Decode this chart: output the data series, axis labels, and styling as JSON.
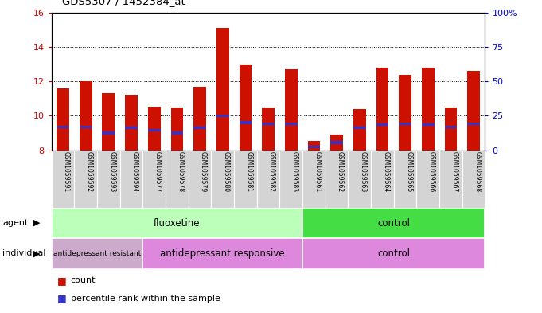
{
  "title": "GDS5307 / 1452384_at",
  "samples": [
    "GSM1059591",
    "GSM1059592",
    "GSM1059593",
    "GSM1059594",
    "GSM1059577",
    "GSM1059578",
    "GSM1059579",
    "GSM1059580",
    "GSM1059581",
    "GSM1059582",
    "GSM1059583",
    "GSM1059561",
    "GSM1059562",
    "GSM1059563",
    "GSM1059564",
    "GSM1059565",
    "GSM1059566",
    "GSM1059567",
    "GSM1059568"
  ],
  "bar_tops": [
    11.6,
    12.0,
    11.3,
    11.2,
    10.55,
    10.5,
    11.7,
    15.1,
    13.0,
    10.5,
    12.7,
    8.55,
    8.9,
    10.4,
    12.8,
    12.4,
    12.8,
    10.5,
    12.6
  ],
  "blue_marks": [
    9.35,
    9.35,
    9.0,
    9.3,
    9.15,
    9.0,
    9.3,
    10.0,
    9.6,
    9.55,
    9.55,
    8.2,
    8.45,
    9.3,
    9.5,
    9.55,
    9.5,
    9.35,
    9.55
  ],
  "bar_bottom": 8.0,
  "ylim_left": [
    8,
    16
  ],
  "ylim_right": [
    0,
    100
  ],
  "yticks_left": [
    8,
    10,
    12,
    14,
    16
  ],
  "yticks_right": [
    0,
    25,
    50,
    75,
    100
  ],
  "bar_color": "#cc1100",
  "blue_color": "#3333cc",
  "bar_width": 0.55,
  "plot_bg": "#ffffff",
  "xtick_bg": "#d4d4d4",
  "agent_fluoxetine_color": "#bbffbb",
  "agent_control_color": "#44dd44",
  "indiv_resistant_color": "#ccaacc",
  "indiv_responsive_color": "#dd88dd",
  "indiv_control_color": "#dd88dd",
  "left_tick_color": "#cc0000",
  "right_tick_color": "#0000cc",
  "legend_count_label": "count",
  "legend_pct_label": "percentile rank within the sample",
  "agent_groups": [
    {
      "label": "fluoxetine",
      "start": 0,
      "end": 11
    },
    {
      "label": "control",
      "start": 11,
      "end": 19
    }
  ],
  "individual_groups": [
    {
      "label": "antidepressant resistant",
      "start": 0,
      "end": 4
    },
    {
      "label": "antidepressant responsive",
      "start": 4,
      "end": 11
    },
    {
      "label": "control",
      "start": 11,
      "end": 19
    }
  ]
}
